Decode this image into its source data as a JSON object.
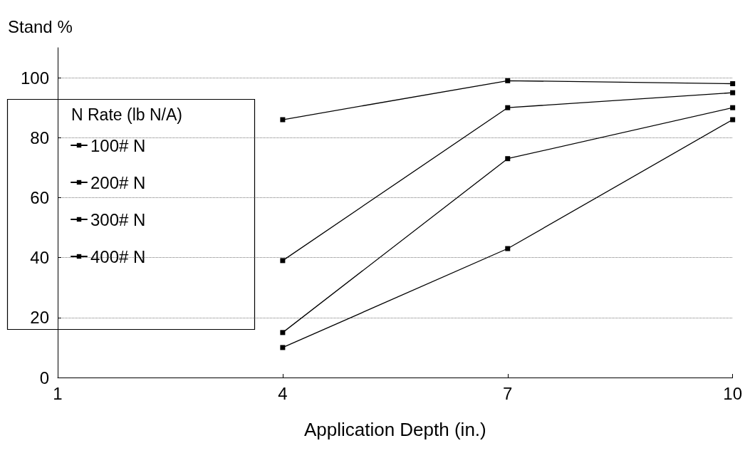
{
  "chart_data": {
    "type": "line",
    "xlabel": "Application Depth (in.)",
    "ylabel": "Stand %",
    "legend_title": "N Rate (lb N/A)",
    "x": [
      4,
      7,
      10
    ],
    "xlim": [
      1,
      10
    ],
    "xticks": [
      1,
      4,
      7,
      10
    ],
    "ylim": [
      0,
      110
    ],
    "yticks": [
      0,
      20,
      40,
      60,
      80,
      100
    ],
    "grid": "y",
    "legend": "left",
    "marker": "square",
    "line_style": "solid",
    "series": [
      {
        "name": "100# N",
        "color": "#000000",
        "values": [
          86,
          99,
          98
        ]
      },
      {
        "name": "200# N",
        "color": "#000000",
        "values": [
          39,
          90,
          95
        ]
      },
      {
        "name": "300# N",
        "color": "#000000",
        "values": [
          15,
          73,
          90
        ]
      },
      {
        "name": "400# N",
        "color": "#000000",
        "values": [
          10,
          43,
          86
        ]
      }
    ]
  }
}
